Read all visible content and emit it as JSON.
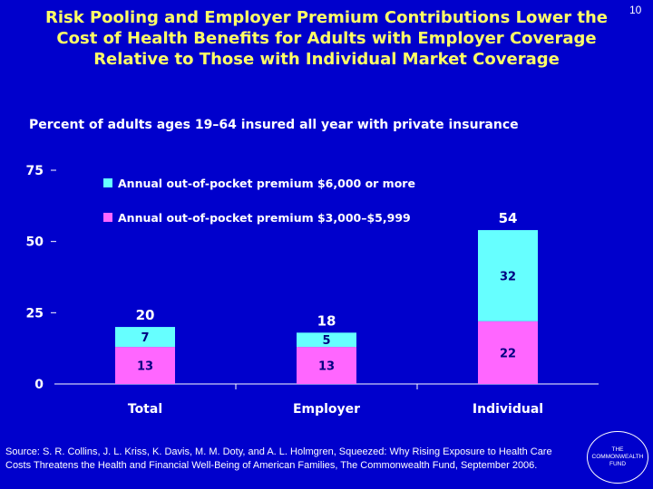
{
  "slide": {
    "number": "10"
  },
  "title_lines": [
    "Risk Pooling and Employer Premium Contributions Lower the",
    "Cost of Health Benefits for Adults with Employer Coverage",
    "Relative to Those with Individual Market Coverage"
  ],
  "chart_data": {
    "type": "bar",
    "stacked": true,
    "subtitle": "Percent of adults ages 19–64 insured all year with private insurance",
    "categories": [
      "Total",
      "Employer",
      "Individual"
    ],
    "series": [
      {
        "name": "Annual out-of-pocket premium $3,000–$5,999",
        "color": "#ff66ff",
        "values": [
          13,
          13,
          22
        ]
      },
      {
        "name": "Annual out-of-pocket premium $6,000 or more",
        "color": "#66ffff",
        "values": [
          7,
          5,
          32
        ]
      }
    ],
    "totals": [
      20,
      18,
      54
    ],
    "ylim": [
      0,
      75
    ],
    "yticks": [
      0,
      25,
      50,
      75
    ],
    "legend_position": "top-center"
  },
  "footer": {
    "source": "Source: S. R. Collins, J. L. Kriss, K. Davis, M. M. Doty, and A. L. Holmgren, Squeezed: Why Rising Exposure to Health Care Costs Threatens the Health and Financial Well-Being of American Families, The Commonwealth Fund, September 2006.",
    "logo_text": "THE COMMONWEALTH FUND"
  }
}
